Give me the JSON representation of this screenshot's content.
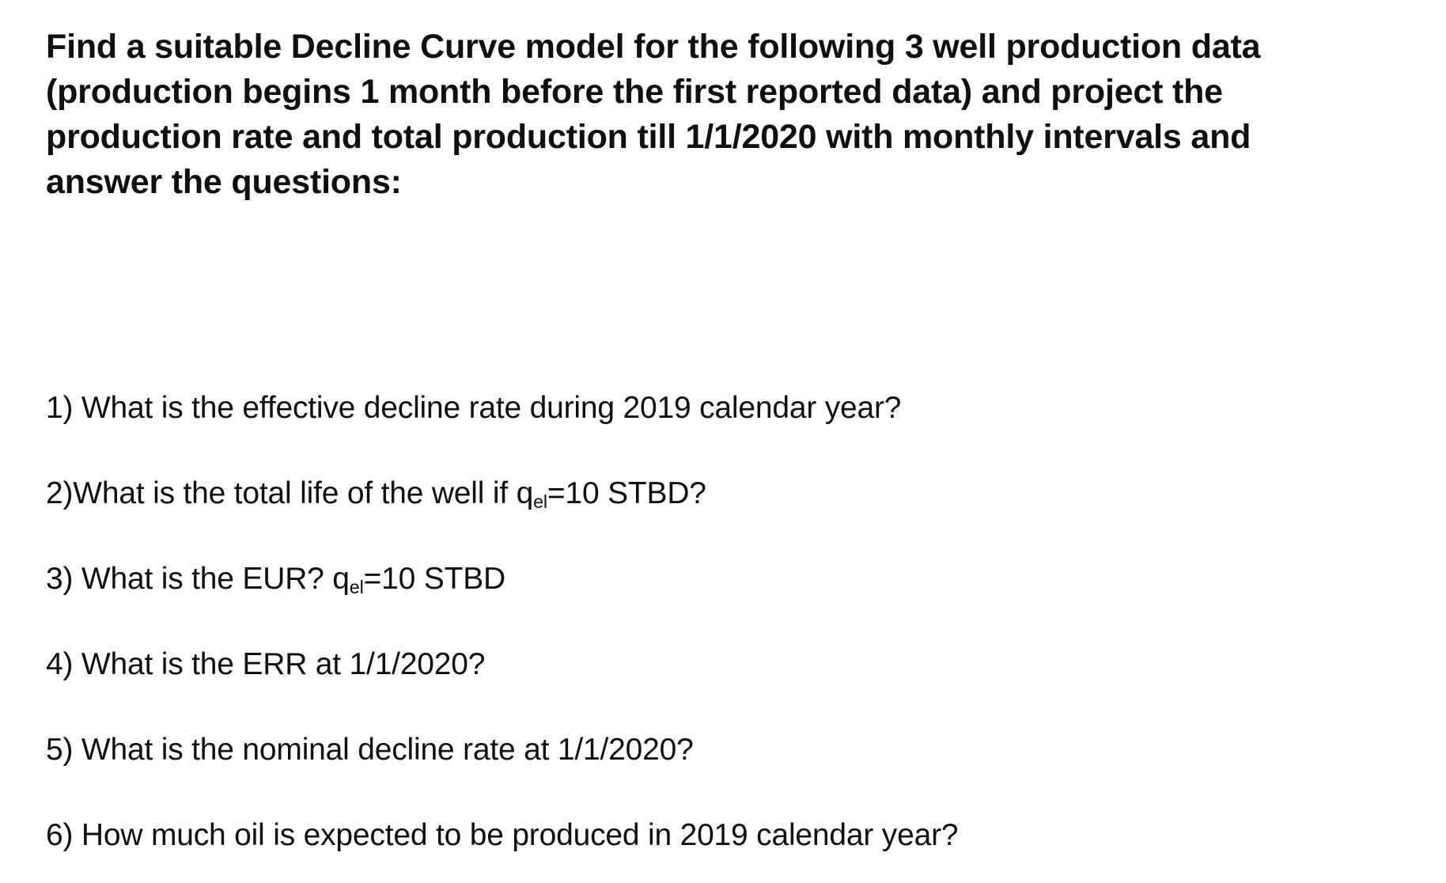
{
  "page": {
    "background_color": "#ffffff",
    "text_color": "#101010"
  },
  "heading": {
    "lines": [
      "Find a suitable Decline Curve model for the following 3 well production data",
      "(production begins 1 month before the first reported data) and project the",
      "production rate and total production till 1/1/2020 with monthly intervals and",
      "answer the questions:"
    ]
  },
  "questions": [
    {
      "pre": "1) What is the effective decline rate during 2019 calendar year?",
      "sub": "",
      "post": ""
    },
    {
      "pre": "2)What is the total life of the well if q",
      "sub": "el",
      "post": "=10 STBD?"
    },
    {
      "pre": "3) What is the EUR? q",
      "sub": "el",
      "post": "=10 STBD"
    },
    {
      "pre": "4) What is the ERR at 1/1/2020?",
      "sub": "",
      "post": ""
    },
    {
      "pre": "5) What is the nominal decline rate at 1/1/2020?",
      "sub": "",
      "post": ""
    },
    {
      "pre": "6) How much oil is expected to be produced in 2019 calendar year?",
      "sub": "",
      "post": ""
    }
  ]
}
